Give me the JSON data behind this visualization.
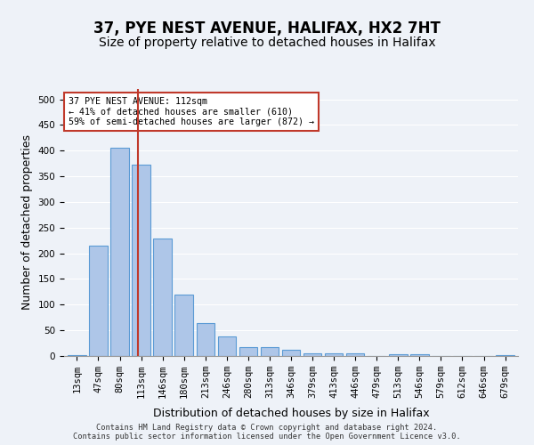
{
  "title_line1": "37, PYE NEST AVENUE, HALIFAX, HX2 7HT",
  "title_line2": "Size of property relative to detached houses in Halifax",
  "xlabel": "Distribution of detached houses by size in Halifax",
  "ylabel": "Number of detached properties",
  "footer_line1": "Contains HM Land Registry data © Crown copyright and database right 2024.",
  "footer_line2": "Contains public sector information licensed under the Open Government Licence v3.0.",
  "annotation_line1": "37 PYE NEST AVENUE: 112sqm",
  "annotation_line2": "← 41% of detached houses are smaller (610)",
  "annotation_line3": "59% of semi-detached houses are larger (872) →",
  "bar_values": [
    2,
    215,
    405,
    372,
    228,
    120,
    65,
    38,
    17,
    17,
    12,
    5,
    5,
    5,
    0,
    4,
    4,
    0,
    0,
    0,
    2
  ],
  "categories": [
    "13sqm",
    "47sqm",
    "80sqm",
    "113sqm",
    "146sqm",
    "180sqm",
    "213sqm",
    "246sqm",
    "280sqm",
    "313sqm",
    "346sqm",
    "379sqm",
    "413sqm",
    "446sqm",
    "479sqm",
    "513sqm",
    "546sqm",
    "579sqm",
    "612sqm",
    "646sqm",
    "679sqm"
  ],
  "bar_color": "#aec6e8",
  "bar_edgecolor": "#5b9bd5",
  "vline_x": 2.85,
  "vline_color": "#c0392b",
  "ylim": [
    0,
    520
  ],
  "yticks": [
    0,
    50,
    100,
    150,
    200,
    250,
    300,
    350,
    400,
    450,
    500
  ],
  "bg_color": "#eef2f8",
  "plot_bg_color": "#eef2f8",
  "grid_color": "#ffffff",
  "annotation_box_color": "#c0392b",
  "title_fontsize": 12,
  "subtitle_fontsize": 10,
  "tick_fontsize": 7.5,
  "ylabel_fontsize": 9,
  "xlabel_fontsize": 9
}
